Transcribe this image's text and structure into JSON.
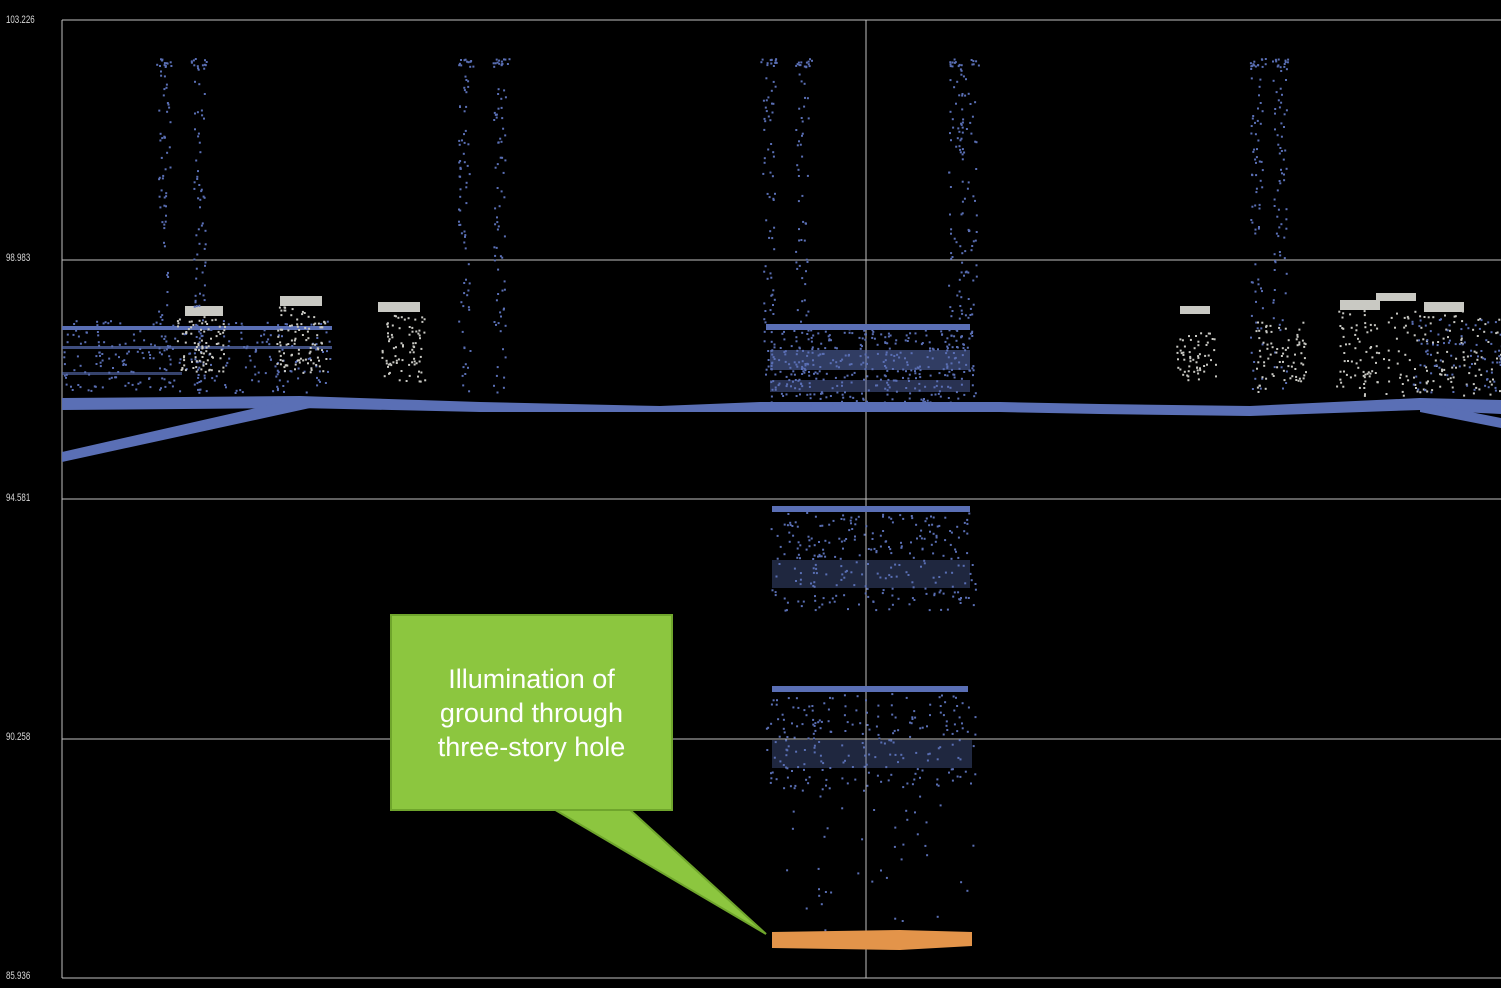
{
  "chart_data": {
    "type": "scatter",
    "title": "",
    "xlabel": "",
    "ylabel": "",
    "y_ticks": [
      "103.226",
      "98.983",
      "94.581",
      "90.258",
      "85.936"
    ],
    "ylim": [
      85.936,
      103.226
    ],
    "grid": true,
    "legend": "none",
    "colors": {
      "background": "#000000",
      "grid": "#bfbfbf",
      "main_points": "#5a6fb5",
      "roof_points": "#c9c9c3",
      "ground_points": "#e3944a",
      "callout_fill": "#8cc63f"
    },
    "features": [
      {
        "name": "road surface",
        "color": "main_points",
        "y": 96.1
      },
      {
        "name": "upper structure",
        "color": "main_points",
        "y_range": [
          96.4,
          97.8
        ]
      },
      {
        "name": "lower floor 1",
        "color": "main_points",
        "y": 94.35
      },
      {
        "name": "lower floor 2",
        "color": "main_points",
        "y": 91.2
      },
      {
        "name": "ground",
        "color": "ground_points",
        "y": 86.6
      }
    ],
    "annotations": [
      {
        "text": "Illumination of\nground through\nthree-story hole",
        "target": "ground"
      }
    ]
  }
}
